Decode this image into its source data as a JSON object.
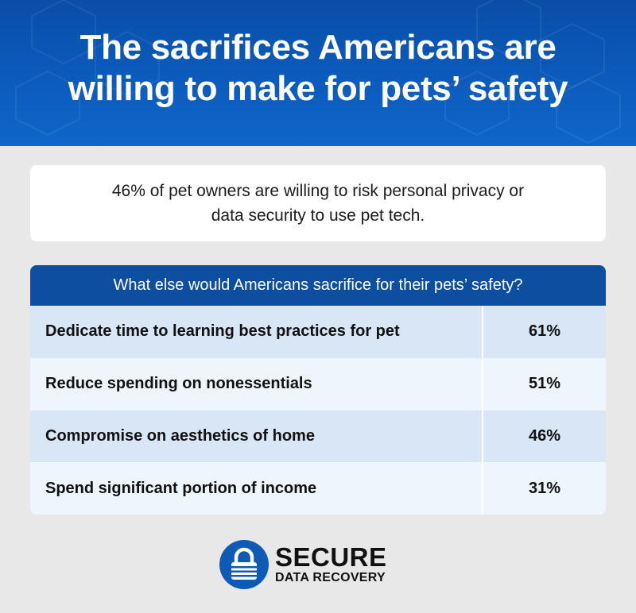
{
  "header": {
    "title": "The sacrifices Americans are willing to make for pets’ safety",
    "background_color": "#0b5bbd"
  },
  "stat": {
    "text": "46% of pet owners are willing to risk personal privacy or data security to use pet tech."
  },
  "table": {
    "heading": "What else would Americans sacrifice for their pets’ safety?",
    "header_color": "#0d4ea0",
    "rows": [
      {
        "label": "Dedicate time to learning best practices for pet",
        "value": "61%"
      },
      {
        "label": "Reduce spending on nonessentials",
        "value": "51%"
      },
      {
        "label": "Compromise on aesthetics of home",
        "value": "46%"
      },
      {
        "label": "Spend significant portion of income",
        "value": "31%"
      }
    ]
  },
  "logo": {
    "line1": "SECURE",
    "line2": "DATA RECOVERY",
    "icon": "padlock-icon",
    "brand_color": "#0d5bb5"
  }
}
